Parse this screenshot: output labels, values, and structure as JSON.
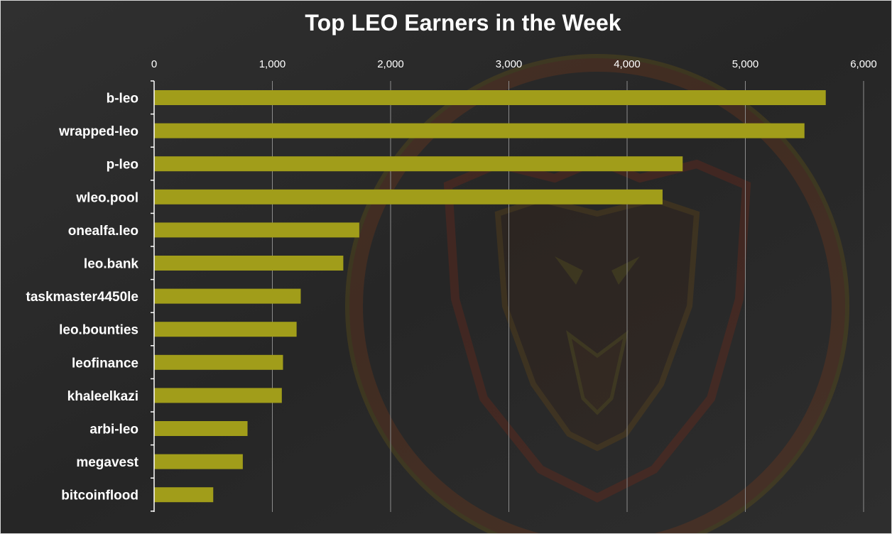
{
  "chart_data": {
    "type": "bar",
    "orientation": "horizontal",
    "title": "Top LEO Earners in the Week",
    "xlabel": "",
    "ylabel": "",
    "xlim": [
      0,
      6000
    ],
    "x_ticks": [
      0,
      1000,
      2000,
      3000,
      4000,
      5000,
      6000
    ],
    "x_tick_labels": [
      "0",
      "1,000",
      "2,000",
      "3,000",
      "4,000",
      "5,000",
      "6,000"
    ],
    "x_axis_position": "top",
    "grid": true,
    "legend": "none",
    "categories": [
      "b-leo",
      "wrapped-leo",
      "p-leo",
      "wleo.pool",
      "onealfa.leo",
      "leo.bank",
      "taskmaster4450le",
      "leo.bounties",
      "leofinance",
      "khaleelkazi",
      "arbi-leo",
      "megavest",
      "bitcoinflood"
    ],
    "values": [
      5680,
      5500,
      4470,
      4300,
      1735,
      1600,
      1240,
      1205,
      1090,
      1080,
      790,
      750,
      500
    ],
    "colors": {
      "background": "#2a2a2a",
      "bar": "#a19d1a",
      "grid": "#8c8c8c",
      "text": "#ffffff"
    }
  }
}
